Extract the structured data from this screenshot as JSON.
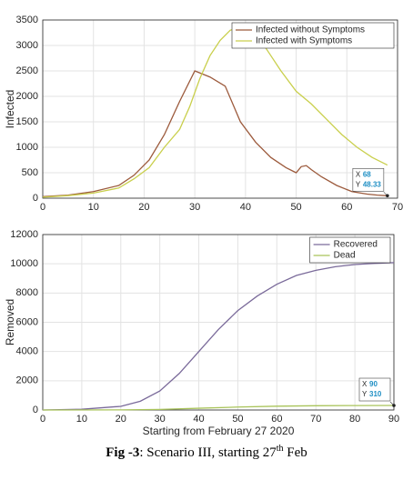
{
  "chart_data": [
    {
      "type": "line",
      "ylabel": "Infected",
      "xlim": [
        0,
        70
      ],
      "xticks": [
        0,
        10,
        20,
        30,
        40,
        50,
        60,
        70
      ],
      "ylim": [
        0,
        3500
      ],
      "yticks": [
        0,
        500,
        1000,
        1500,
        2000,
        2500,
        3000,
        3500
      ],
      "grid": true,
      "legend": "upper right",
      "series": [
        {
          "name": "Infected without Symptoms",
          "color": "#9c5a3c",
          "x": [
            0,
            5,
            10,
            15,
            18,
            21,
            24,
            27,
            30,
            33,
            36,
            39,
            42,
            45,
            48,
            50,
            51,
            52,
            53,
            55,
            58,
            61,
            64,
            66,
            68
          ],
          "values": [
            30,
            60,
            130,
            250,
            450,
            750,
            1250,
            1900,
            2500,
            2380,
            2200,
            1500,
            1100,
            800,
            600,
            500,
            620,
            640,
            560,
            420,
            250,
            130,
            80,
            60,
            48.33
          ]
        },
        {
          "name": "Infected with Symptoms",
          "color": "#c9cf4c",
          "x": [
            0,
            5,
            10,
            15,
            18,
            21,
            24,
            27,
            29,
            31,
            33,
            35,
            37,
            39,
            41,
            43,
            45,
            47,
            50,
            53,
            56,
            59,
            62,
            65,
            68
          ],
          "values": [
            20,
            50,
            100,
            200,
            380,
            600,
            1000,
            1350,
            1800,
            2350,
            2800,
            3100,
            3300,
            3350,
            3300,
            3100,
            2800,
            2500,
            2100,
            1850,
            1550,
            1250,
            1000,
            800,
            650
          ]
        }
      ],
      "datatip": {
        "x_text": "X",
        "x": 68,
        "y_text": "Y",
        "y": 48.33
      }
    },
    {
      "type": "line",
      "xlabel": "Starting from February 27 2020",
      "ylabel": "Removed",
      "xlim": [
        0,
        90
      ],
      "xticks": [
        0,
        10,
        20,
        30,
        40,
        50,
        60,
        70,
        80,
        90
      ],
      "ylim": [
        0,
        12000
      ],
      "yticks": [
        0,
        2000,
        4000,
        6000,
        8000,
        10000,
        12000
      ],
      "grid": true,
      "legend": "upper right",
      "series": [
        {
          "name": "Recovered",
          "color": "#7a6a9a",
          "x": [
            0,
            10,
            20,
            25,
            30,
            35,
            40,
            45,
            50,
            55,
            60,
            65,
            70,
            75,
            80,
            85,
            90
          ],
          "values": [
            0,
            50,
            250,
            600,
            1300,
            2500,
            4000,
            5500,
            6800,
            7800,
            8600,
            9200,
            9550,
            9800,
            9950,
            10030,
            10080
          ]
        },
        {
          "name": "Dead",
          "color": "#a9c45a",
          "x": [
            0,
            20,
            30,
            40,
            50,
            60,
            70,
            80,
            90
          ],
          "values": [
            0,
            10,
            40,
            120,
            200,
            260,
            290,
            305,
            310
          ]
        }
      ],
      "datatip": {
        "x_text": "X",
        "x": 90,
        "y_text": "Y",
        "y": 310
      }
    }
  ],
  "caption": {
    "label": "Fig -3",
    "text": ": Scenario III, starting 27",
    "sup": "th",
    "tail": " Feb"
  }
}
